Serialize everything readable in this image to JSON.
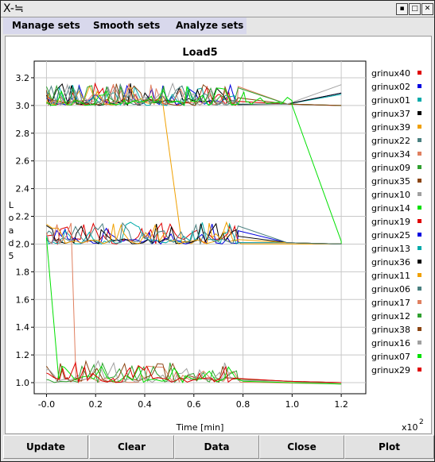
{
  "window": {
    "title_icon": "X-≒",
    "controls": [
      "minimize-icon",
      "maximize-icon",
      "close-icon"
    ]
  },
  "menu": {
    "items": [
      {
        "label": "Manage sets"
      },
      {
        "label": "Smooth sets"
      },
      {
        "label": "Analyze sets"
      }
    ]
  },
  "buttons": {
    "update": "Update",
    "clear": "Clear",
    "data": "Data",
    "close": "Close",
    "plot": "Plot"
  },
  "chart_data": {
    "type": "line",
    "title": "Load5",
    "xlabel": "Time [min]",
    "ylabel": "Load5",
    "x_multiplier": "x10",
    "x_multiplier_exp": "2",
    "xlim": [
      -0.05,
      1.3
    ],
    "ylim": [
      0.92,
      3.32
    ],
    "x_ticks": [
      -0.0,
      0.2,
      0.4,
      0.6,
      0.8,
      1.0,
      1.2
    ],
    "x_tick_labels": [
      "-0.0",
      "0.2",
      "0.4",
      "0.6",
      "0.8",
      "1.0",
      "1.2"
    ],
    "y_ticks": [
      1.0,
      1.2,
      1.4,
      1.6,
      1.8,
      2.0,
      2.2,
      2.4,
      2.6,
      2.8,
      3.0,
      3.2
    ],
    "y_tick_labels": [
      "1.0",
      "1.2",
      "1.4",
      "1.6",
      "1.8",
      "2.0",
      "2.2",
      "2.4",
      "2.6",
      "2.8",
      "3.0",
      "3.2"
    ],
    "grid": true,
    "legend_position": "right",
    "series": [
      {
        "name": "grinux40",
        "color": "#e00000",
        "level": 3.0,
        "end": 3.0,
        "end_x": 1.18
      },
      {
        "name": "grinux02",
        "color": "#0000e0",
        "level": 3.0,
        "end": 3.09,
        "end_x": 1.2
      },
      {
        "name": "grinux01",
        "color": "#00aaaa",
        "level": 3.0,
        "end": 3.08,
        "end_x": 1.2
      },
      {
        "name": "grinux37",
        "color": "#000000",
        "level": 3.0,
        "end": 3.09,
        "end_x": 1.2
      },
      {
        "name": "grinux39",
        "color": "#f0a000",
        "level": 3.0,
        "drop_to": 2.0,
        "drop_x": [
          0.47,
          0.55
        ],
        "end": 2.0,
        "end_x": 1.2
      },
      {
        "name": "grinux22",
        "color": "#4a8080",
        "level": 3.0,
        "end": 3.0,
        "end_x": 1.2
      },
      {
        "name": "grinux34",
        "color": "#e08060",
        "level": 3.0,
        "end": 3.0,
        "end_x": 1.2
      },
      {
        "name": "grinux09",
        "color": "#30a030",
        "level": 3.0,
        "end": 3.0,
        "end_x": 1.2
      },
      {
        "name": "grinux35",
        "color": "#8b4513",
        "level": 3.0,
        "end": 3.0,
        "end_x": 1.2
      },
      {
        "name": "grinux10",
        "color": "#a0a0a0",
        "level": 3.0,
        "end": 3.15,
        "end_x": 1.2
      },
      {
        "name": "grinux14",
        "color": "#00e000",
        "level": 3.0,
        "drop_to": 2.0,
        "drop_x": [
          1.0,
          1.2
        ],
        "end": 2.0,
        "end_x": 1.2
      },
      {
        "name": "grinux19",
        "color": "#e00000",
        "level": 2.0,
        "end": 2.0,
        "end_x": 1.2
      },
      {
        "name": "grinux25",
        "color": "#0000e0",
        "level": 2.0,
        "end": 2.0,
        "end_x": 1.2
      },
      {
        "name": "grinux13",
        "color": "#00aaaa",
        "level": 2.0,
        "end": 2.0,
        "end_x": 1.2
      },
      {
        "name": "grinux36",
        "color": "#000000",
        "level": 2.0,
        "end": 2.0,
        "end_x": 1.2
      },
      {
        "name": "grinux11",
        "color": "#f0a000",
        "level": 2.0,
        "end": 2.0,
        "end_x": 1.2
      },
      {
        "name": "grinux06",
        "color": "#4a8080",
        "level": 2.0,
        "end": 2.0,
        "end_x": 1.2
      },
      {
        "name": "grinux17",
        "color": "#e08060",
        "level": 2.0,
        "drop_to": 1.0,
        "drop_x": [
          0.1,
          0.12
        ],
        "end": 0.99,
        "end_x": 1.2
      },
      {
        "name": "grinux12",
        "color": "#30a030",
        "level": 1.0,
        "end": 1.0,
        "end_x": 1.2
      },
      {
        "name": "grinux38",
        "color": "#8b4513",
        "level": 1.0,
        "end": 1.0,
        "end_x": 1.2
      },
      {
        "name": "grinux16",
        "color": "#a0a0a0",
        "level": 1.0,
        "end": 0.99,
        "end_x": 1.2
      },
      {
        "name": "grinux07",
        "color": "#00e000",
        "level": 2.0,
        "drop_to": 1.0,
        "drop_x": [
          0.0,
          0.05
        ],
        "end": 0.99,
        "end_x": 1.2
      },
      {
        "name": "grinux29",
        "color": "#e00000",
        "level": 1.0,
        "end": 1.0,
        "end_x": 1.2
      }
    ]
  }
}
